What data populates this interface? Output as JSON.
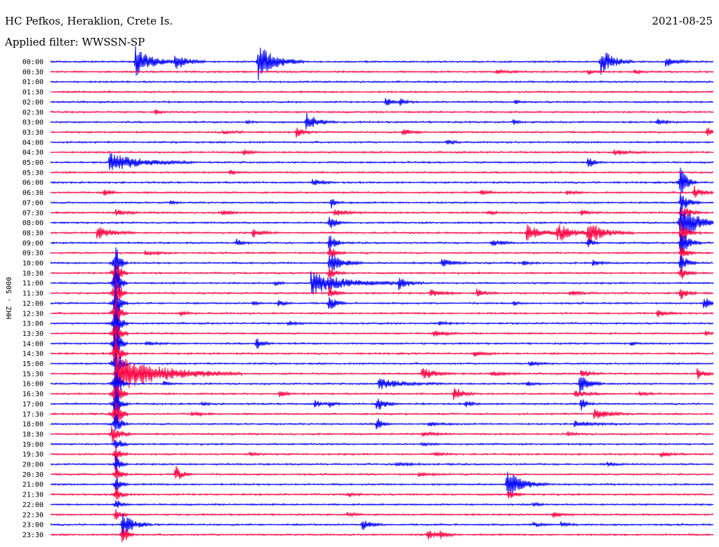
{
  "header": {
    "station": "HC Pefkos, Heraklion, Crete Is.",
    "date": "2021-08-25",
    "filter": "Applied filter: WWSSN-SP"
  },
  "chart_data": {
    "type": "line",
    "title": "HC Pefkos, Heraklion, Crete Is.",
    "subtitle": "Applied filter: WWSSN-SP",
    "date": "2021-08-25",
    "ylabel": "HHZ - 5000",
    "xlabel": "",
    "trace_colors": [
      "#0000ff",
      "#ff0040"
    ],
    "grid": false,
    "legend": "none",
    "rows": [
      {
        "label": "00:00",
        "events": [
          [
            0.128,
            22,
            20,
            0.7
          ],
          [
            0.188,
            14,
            14,
            0.7
          ],
          [
            0.313,
            26,
            22,
            0.8
          ],
          [
            0.83,
            20,
            16,
            0.9
          ],
          [
            0.928,
            8,
            12,
            0.6
          ]
        ]
      },
      {
        "label": "00:30",
        "events": [
          [
            0.672,
            3,
            16,
            0.5
          ],
          [
            0.81,
            4,
            8,
            0.5
          ],
          [
            0.88,
            3,
            8,
            0.5
          ]
        ]
      },
      {
        "label": "01:00",
        "events": []
      },
      {
        "label": "01:30",
        "events": []
      },
      {
        "label": "02:00",
        "events": [
          [
            0.505,
            6,
            12,
            0.5
          ],
          [
            0.527,
            4,
            8,
            0.5
          ],
          [
            0.7,
            3,
            6,
            0.5
          ]
        ]
      },
      {
        "label": "02:30",
        "events": [
          [
            0.158,
            4,
            6,
            0.5
          ]
        ]
      },
      {
        "label": "03:00",
        "events": [
          [
            0.295,
            3,
            6,
            0.5
          ],
          [
            0.385,
            14,
            14,
            0.6
          ],
          [
            0.698,
            4,
            6,
            0.5
          ],
          [
            0.915,
            4,
            10,
            0.5
          ]
        ]
      },
      {
        "label": "03:30",
        "events": [
          [
            0.26,
            3,
            14,
            0.5
          ],
          [
            0.37,
            8,
            8,
            0.5
          ],
          [
            0.53,
            5,
            12,
            0.5
          ],
          [
            0.99,
            9,
            8,
            0.5
          ]
        ]
      },
      {
        "label": "04:00",
        "events": [
          [
            0.598,
            5,
            8,
            0.5
          ]
        ]
      },
      {
        "label": "04:30",
        "events": [
          [
            0.29,
            5,
            10,
            0.5
          ],
          [
            0.85,
            4,
            16,
            0.5
          ]
        ]
      },
      {
        "label": "05:00",
        "events": [
          [
            0.088,
            14,
            40,
            0.3
          ],
          [
            0.81,
            10,
            8,
            0.5
          ]
        ]
      },
      {
        "label": "05:30",
        "events": [
          [
            0.27,
            4,
            8,
            0.5
          ]
        ]
      },
      {
        "label": "06:00",
        "events": [
          [
            0.395,
            5,
            12,
            0.5
          ],
          [
            0.95,
            26,
            8,
            1.5
          ]
        ]
      },
      {
        "label": "06:30",
        "events": [
          [
            0.08,
            7,
            8,
            0.5
          ],
          [
            0.648,
            4,
            12,
            0.5
          ],
          [
            0.778,
            3,
            10,
            0.5
          ],
          [
            0.97,
            10,
            12,
            0.5
          ]
        ]
      },
      {
        "label": "07:00",
        "events": [
          [
            0.18,
            3,
            6,
            0.5
          ],
          [
            0.423,
            8,
            6,
            0.5
          ],
          [
            0.95,
            16,
            10,
            0.8
          ]
        ]
      },
      {
        "label": "07:30",
        "events": [
          [
            0.098,
            5,
            12,
            0.5
          ],
          [
            0.258,
            4,
            12,
            0.5
          ],
          [
            0.428,
            4,
            20,
            0.5
          ],
          [
            0.66,
            3,
            10,
            0.5
          ],
          [
            0.8,
            4,
            10,
            0.5
          ],
          [
            0.95,
            14,
            10,
            0.8
          ]
        ]
      },
      {
        "label": "08:00",
        "events": [
          [
            0.42,
            12,
            8,
            0.8
          ],
          [
            0.95,
            28,
            22,
            1.2
          ]
        ]
      },
      {
        "label": "08:30",
        "events": [
          [
            0.07,
            10,
            18,
            0.5
          ],
          [
            0.305,
            6,
            12,
            0.5
          ],
          [
            0.718,
            12,
            20,
            0.6
          ],
          [
            0.763,
            14,
            20,
            0.6
          ],
          [
            0.81,
            16,
            22,
            0.6
          ],
          [
            0.95,
            16,
            10,
            0.8
          ]
        ]
      },
      {
        "label": "09:00",
        "events": [
          [
            0.28,
            6,
            8,
            0.5
          ],
          [
            0.42,
            14,
            8,
            0.8
          ],
          [
            0.665,
            6,
            12,
            0.5
          ],
          [
            0.81,
            8,
            6,
            0.6
          ],
          [
            0.95,
            22,
            10,
            1.0
          ]
        ]
      },
      {
        "label": "09:30",
        "events": [
          [
            0.142,
            3,
            16,
            0.5
          ],
          [
            0.42,
            12,
            8,
            0.8
          ],
          [
            0.95,
            12,
            8,
            0.8
          ]
        ]
      },
      {
        "label": "10:00",
        "events": [
          [
            0.098,
            28,
            6,
            2.5
          ],
          [
            0.42,
            16,
            16,
            0.7
          ],
          [
            0.59,
            8,
            12,
            0.5
          ],
          [
            0.712,
            4,
            8,
            0.5
          ],
          [
            0.818,
            5,
            8,
            0.5
          ],
          [
            0.95,
            16,
            8,
            1.0
          ]
        ]
      },
      {
        "label": "10:30",
        "events": [
          [
            0.098,
            28,
            6,
            2.5
          ],
          [
            0.42,
            10,
            8,
            0.8
          ],
          [
            0.95,
            12,
            8,
            1.0
          ]
        ]
      },
      {
        "label": "11:00",
        "events": [
          [
            0.098,
            28,
            6,
            2.5
          ],
          [
            0.393,
            16,
            46,
            0.3
          ],
          [
            0.525,
            10,
            12,
            0.6
          ],
          [
            0.338,
            4,
            6,
            0.5
          ]
        ]
      },
      {
        "label": "11:30",
        "events": [
          [
            0.098,
            28,
            6,
            2.5
          ],
          [
            0.42,
            10,
            8,
            0.8
          ],
          [
            0.573,
            6,
            16,
            0.5
          ],
          [
            0.643,
            6,
            10,
            0.5
          ],
          [
            0.783,
            4,
            14,
            0.5
          ],
          [
            0.95,
            10,
            8,
            1.0
          ]
        ]
      },
      {
        "label": "12:00",
        "events": [
          [
            0.098,
            28,
            6,
            2.5
          ],
          [
            0.305,
            4,
            6,
            0.5
          ],
          [
            0.343,
            5,
            8,
            0.5
          ],
          [
            0.42,
            14,
            8,
            0.8
          ],
          [
            0.698,
            3,
            6,
            0.5
          ],
          [
            0.985,
            10,
            10,
            0.5
          ]
        ]
      },
      {
        "label": "12:30",
        "events": [
          [
            0.098,
            28,
            6,
            2.5
          ],
          [
            0.195,
            4,
            8,
            0.5
          ],
          [
            0.915,
            6,
            12,
            0.5
          ]
        ]
      },
      {
        "label": "13:00",
        "events": [
          [
            0.098,
            28,
            6,
            2.5
          ],
          [
            0.358,
            4,
            8,
            0.5
          ],
          [
            0.585,
            3,
            12,
            0.5
          ]
        ]
      },
      {
        "label": "13:30",
        "events": [
          [
            0.098,
            28,
            6,
            2.5
          ],
          [
            0.578,
            5,
            14,
            0.5
          ],
          [
            0.988,
            4,
            8,
            0.5
          ]
        ]
      },
      {
        "label": "14:00",
        "events": [
          [
            0.098,
            28,
            6,
            2.5
          ],
          [
            0.31,
            10,
            8,
            0.6
          ],
          [
            0.143,
            3,
            14,
            0.5
          ],
          [
            0.875,
            3,
            6,
            0.5
          ]
        ]
      },
      {
        "label": "14:30",
        "events": [
          [
            0.098,
            28,
            6,
            2.5
          ],
          [
            0.638,
            4,
            14,
            0.5
          ]
        ]
      },
      {
        "label": "15:00",
        "events": [
          [
            0.098,
            28,
            6,
            2.5
          ],
          [
            0.722,
            4,
            12,
            0.5
          ]
        ]
      },
      {
        "label": "15:30",
        "events": [
          [
            0.098,
            28,
            60,
            0.8
          ],
          [
            0.56,
            10,
            16,
            0.5
          ],
          [
            0.665,
            4,
            14,
            0.5
          ],
          [
            0.8,
            6,
            12,
            0.5
          ],
          [
            0.975,
            8,
            10,
            0.5
          ]
        ]
      },
      {
        "label": "16:00",
        "events": [
          [
            0.098,
            28,
            6,
            2.5
          ],
          [
            0.495,
            8,
            30,
            0.5
          ],
          [
            0.17,
            4,
            8,
            0.5
          ],
          [
            0.718,
            3,
            10,
            0.5
          ],
          [
            0.798,
            14,
            12,
            0.6
          ]
        ]
      },
      {
        "label": "16:30",
        "events": [
          [
            0.098,
            28,
            6,
            2.5
          ],
          [
            0.345,
            5,
            8,
            0.5
          ],
          [
            0.608,
            12,
            10,
            0.6
          ],
          [
            0.79,
            5,
            16,
            0.5
          ],
          [
            0.888,
            4,
            8,
            0.5
          ]
        ]
      },
      {
        "label": "17:00",
        "events": [
          [
            0.098,
            28,
            6,
            2.5
          ],
          [
            0.492,
            12,
            10,
            0.8
          ],
          [
            0.228,
            3,
            8,
            0.5
          ],
          [
            0.398,
            8,
            6,
            0.5
          ],
          [
            0.42,
            6,
            6,
            0.5
          ],
          [
            0.625,
            6,
            8,
            0.5
          ],
          [
            0.8,
            12,
            6,
            0.8
          ]
        ]
      },
      {
        "label": "17:30",
        "events": [
          [
            0.098,
            28,
            6,
            2.5
          ],
          [
            0.82,
            10,
            16,
            0.6
          ],
          [
            0.212,
            3,
            16,
            0.5
          ]
        ]
      },
      {
        "label": "18:00",
        "events": [
          [
            0.098,
            20,
            6,
            2.0
          ],
          [
            0.492,
            12,
            6,
            0.8
          ],
          [
            0.57,
            3,
            14,
            0.5
          ],
          [
            0.79,
            4,
            28,
            0.5
          ]
        ]
      },
      {
        "label": "18:30",
        "events": [
          [
            0.092,
            14,
            10,
            1.2
          ],
          [
            0.56,
            3,
            16,
            0.5
          ],
          [
            0.78,
            3,
            10,
            0.5
          ]
        ]
      },
      {
        "label": "19:00",
        "events": [
          [
            0.098,
            14,
            6,
            1.5
          ],
          [
            0.56,
            3,
            10,
            0.5
          ]
        ]
      },
      {
        "label": "19:30",
        "events": [
          [
            0.098,
            14,
            6,
            1.5
          ],
          [
            0.3,
            3,
            10,
            0.5
          ],
          [
            0.58,
            3,
            10,
            0.5
          ],
          [
            0.92,
            4,
            12,
            0.5
          ]
        ]
      },
      {
        "label": "20:00",
        "events": [
          [
            0.098,
            14,
            6,
            1.5
          ],
          [
            0.52,
            3,
            16,
            0.5
          ],
          [
            0.84,
            3,
            10,
            0.5
          ]
        ]
      },
      {
        "label": "20:30",
        "events": [
          [
            0.098,
            14,
            6,
            1.5
          ],
          [
            0.188,
            14,
            8,
            0.6
          ],
          [
            0.555,
            3,
            16,
            0.5
          ]
        ]
      },
      {
        "label": "21:00",
        "events": [
          [
            0.098,
            14,
            6,
            1.5
          ],
          [
            0.688,
            20,
            20,
            0.6
          ]
        ]
      },
      {
        "label": "21:30",
        "events": [
          [
            0.098,
            14,
            6,
            1.5
          ],
          [
            0.448,
            4,
            8,
            0.5
          ],
          [
            0.69,
            8,
            8,
            0.6
          ]
        ]
      },
      {
        "label": "22:00",
        "events": [
          [
            0.098,
            10,
            6,
            1.0
          ],
          [
            0.728,
            4,
            6,
            0.5
          ]
        ]
      },
      {
        "label": "22:30",
        "events": [
          [
            0.098,
            10,
            6,
            1.0
          ],
          [
            0.448,
            4,
            8,
            0.5
          ],
          [
            0.758,
            6,
            10,
            0.5
          ]
        ]
      },
      {
        "label": "23:00",
        "events": [
          [
            0.108,
            18,
            14,
            0.8
          ],
          [
            0.47,
            10,
            10,
            0.6
          ],
          [
            0.728,
            3,
            12,
            0.5
          ],
          [
            0.77,
            4,
            8,
            0.5
          ]
        ]
      },
      {
        "label": "23:30",
        "events": [
          [
            0.108,
            20,
            6,
            1.2
          ],
          [
            0.568,
            8,
            12,
            0.5
          ],
          [
            0.588,
            4,
            10,
            0.5
          ]
        ]
      }
    ]
  }
}
